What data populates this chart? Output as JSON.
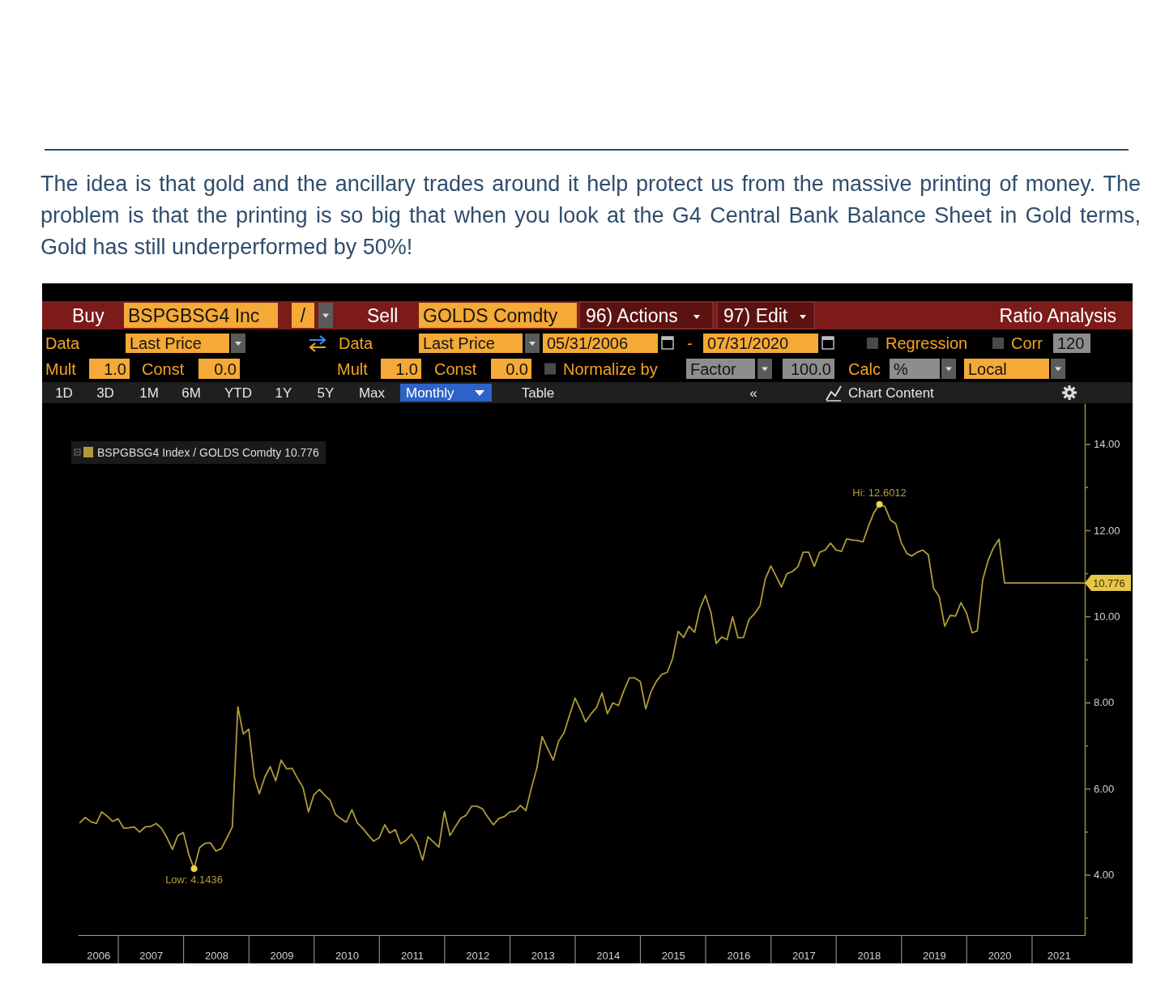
{
  "chart_data": {
    "type": "line",
    "title": "The idea is that gold and the ancillary trades around it help protect us from the massive printing of money. The problem is that the printing is so big that when you look at the G4 Central Bank Balance Sheet in Gold terms, Gold has still underperformed by 50%!",
    "x": [
      "2006-05-31",
      "2006-06-30",
      "2006-07-31",
      "2006-08-31",
      "2006-09-30",
      "2006-10-31",
      "2006-11-30",
      "2006-12-31",
      "2007-01-31",
      "2007-02-28",
      "2007-03-31",
      "2007-04-30",
      "2007-05-31",
      "2007-06-30",
      "2007-07-31",
      "2007-08-31",
      "2007-09-30",
      "2007-10-31",
      "2007-11-30",
      "2007-12-31",
      "2008-01-31",
      "2008-02-29",
      "2008-03-31",
      "2008-04-30",
      "2008-05-31",
      "2008-06-30",
      "2008-07-31",
      "2008-08-31",
      "2008-09-30",
      "2008-10-31",
      "2008-11-30",
      "2008-12-31",
      "2009-01-31",
      "2009-02-28",
      "2009-03-31",
      "2009-04-30",
      "2009-05-31",
      "2009-06-30",
      "2009-07-31",
      "2009-08-31",
      "2009-09-30",
      "2009-10-31",
      "2009-11-30",
      "2009-12-31",
      "2010-01-31",
      "2010-02-28",
      "2010-03-31",
      "2010-04-30",
      "2010-05-31",
      "2010-06-30",
      "2010-07-31",
      "2010-08-31",
      "2010-09-30",
      "2010-10-31",
      "2010-11-30",
      "2010-12-31",
      "2011-01-31",
      "2011-02-28",
      "2011-03-31",
      "2011-04-30",
      "2011-05-31",
      "2011-06-30",
      "2011-07-31",
      "2011-08-31",
      "2011-09-30",
      "2011-10-31",
      "2011-11-30",
      "2011-12-31",
      "2012-01-31",
      "2012-02-29",
      "2012-03-31",
      "2012-04-30",
      "2012-05-31",
      "2012-06-30",
      "2012-07-31",
      "2012-08-31",
      "2012-09-30",
      "2012-10-31",
      "2012-11-30",
      "2012-12-31",
      "2013-01-31",
      "2013-02-28",
      "2013-03-31",
      "2013-04-30",
      "2013-05-31",
      "2013-06-30",
      "2013-07-31",
      "2013-08-31",
      "2013-09-30",
      "2013-10-31",
      "2013-11-30",
      "2013-12-31",
      "2014-01-31",
      "2014-02-28",
      "2014-03-31",
      "2014-04-30",
      "2014-05-31",
      "2014-06-30",
      "2014-07-31",
      "2014-08-31",
      "2014-09-30",
      "2014-10-31",
      "2014-11-30",
      "2014-12-31",
      "2015-01-31",
      "2015-02-28",
      "2015-03-31",
      "2015-04-30",
      "2015-05-31",
      "2015-06-30",
      "2015-07-31",
      "2015-08-31",
      "2015-09-30",
      "2015-10-31",
      "2015-11-30",
      "2015-12-31",
      "2016-01-31",
      "2016-02-29",
      "2016-03-31",
      "2016-04-30",
      "2016-05-31",
      "2016-06-30",
      "2016-07-31",
      "2016-08-31",
      "2016-09-30",
      "2016-10-31",
      "2016-11-30",
      "2016-12-31",
      "2017-01-31",
      "2017-02-28",
      "2017-03-31",
      "2017-04-30",
      "2017-05-31",
      "2017-06-30",
      "2017-07-31",
      "2017-08-31",
      "2017-09-30",
      "2017-10-31",
      "2017-11-30",
      "2017-12-31",
      "2018-01-31",
      "2018-02-28",
      "2018-03-31",
      "2018-04-30",
      "2018-05-31",
      "2018-06-30",
      "2018-07-31",
      "2018-08-31",
      "2018-09-30",
      "2018-10-31",
      "2018-11-30",
      "2018-12-31",
      "2019-01-31",
      "2019-02-28",
      "2019-03-31",
      "2019-04-30",
      "2019-05-31",
      "2019-06-30",
      "2019-07-31",
      "2019-08-31",
      "2019-09-30",
      "2019-10-31",
      "2019-11-30",
      "2019-12-31",
      "2020-01-31",
      "2020-02-29",
      "2020-03-31",
      "2020-04-30",
      "2020-05-31",
      "2020-06-30",
      "2020-07-31",
      "2021-10-23"
    ],
    "series": [
      {
        "name": "BSPGBSG4 Index / GOLDS Comdty 10.776",
        "color": "#b09a38",
        "values": [
          5.21,
          5.33,
          5.23,
          5.19,
          5.46,
          5.36,
          5.24,
          5.3,
          5.08,
          5.09,
          5.11,
          4.99,
          5.11,
          5.12,
          5.19,
          5.08,
          4.86,
          4.59,
          4.91,
          4.98,
          4.46,
          4.1436,
          4.63,
          4.73,
          4.74,
          4.55,
          4.61,
          4.86,
          5.11,
          7.9,
          7.27,
          7.38,
          6.27,
          5.88,
          6.27,
          6.51,
          6.18,
          6.66,
          6.46,
          6.47,
          6.24,
          6.02,
          5.46,
          5.86,
          5.98,
          5.85,
          5.73,
          5.4,
          5.3,
          5.22,
          5.51,
          5.2,
          5.08,
          4.92,
          4.78,
          4.86,
          5.16,
          4.97,
          5.05,
          4.72,
          4.8,
          4.94,
          4.74,
          4.34,
          4.88,
          4.76,
          4.64,
          5.47,
          4.91,
          5.11,
          5.31,
          5.38,
          5.59,
          5.59,
          5.53,
          5.33,
          5.16,
          5.31,
          5.35,
          5.46,
          5.48,
          5.61,
          5.49,
          6.0,
          6.47,
          7.21,
          6.93,
          6.66,
          7.1,
          7.3,
          7.7,
          8.1,
          7.83,
          7.55,
          7.74,
          7.88,
          8.22,
          7.74,
          7.99,
          7.93,
          8.27,
          8.57,
          8.57,
          8.49,
          7.85,
          8.24,
          8.49,
          8.65,
          8.7,
          9.02,
          9.65,
          9.51,
          9.77,
          9.63,
          10.18,
          10.49,
          10.08,
          9.37,
          9.52,
          9.46,
          9.99,
          9.5,
          9.51,
          9.93,
          10.06,
          10.24,
          10.87,
          11.17,
          10.92,
          10.68,
          10.99,
          11.04,
          11.15,
          11.49,
          11.49,
          11.16,
          11.49,
          11.54,
          11.7,
          11.54,
          11.51,
          11.8,
          11.77,
          11.76,
          11.73,
          12.09,
          12.41,
          12.6012,
          12.55,
          12.24,
          12.15,
          11.71,
          11.46,
          11.4,
          11.49,
          11.54,
          11.43,
          10.65,
          10.46,
          9.77,
          10.02,
          10.01,
          10.32,
          10.08,
          9.62,
          9.66,
          10.85,
          11.3,
          11.6,
          11.79,
          10.776,
          10.776
        ]
      }
    ],
    "xlim": [
      "2006-05-19",
      "2021-10-23"
    ],
    "xticks": [
      {
        "value": "2006-09-10",
        "label": "2006"
      },
      {
        "value": "2007-07-02",
        "label": "2007"
      },
      {
        "value": "2008-07-02",
        "label": "2008"
      },
      {
        "value": "2009-07-02",
        "label": "2009"
      },
      {
        "value": "2010-07-02",
        "label": "2010"
      },
      {
        "value": "2011-07-02",
        "label": "2011"
      },
      {
        "value": "2012-07-02",
        "label": "2012"
      },
      {
        "value": "2013-07-02",
        "label": "2013"
      },
      {
        "value": "2014-07-02",
        "label": "2014"
      },
      {
        "value": "2015-07-02",
        "label": "2015"
      },
      {
        "value": "2016-07-02",
        "label": "2016"
      },
      {
        "value": "2017-07-02",
        "label": "2017"
      },
      {
        "value": "2018-07-02",
        "label": "2018"
      },
      {
        "value": "2019-07-02",
        "label": "2019"
      },
      {
        "value": "2020-07-02",
        "label": "2020"
      },
      {
        "value": "2021-05-30",
        "label": "2021"
      }
    ],
    "ylim": [
      2.6,
      14.95
    ],
    "yticks": [
      {
        "value": 3,
        "label": null
      },
      {
        "value": 4,
        "label": "4.00"
      },
      {
        "value": 5,
        "label": null
      },
      {
        "value": 6,
        "label": "6.00"
      },
      {
        "value": 7,
        "label": null
      },
      {
        "value": 8,
        "label": "8.00"
      },
      {
        "value": 9,
        "label": null
      },
      {
        "value": 10,
        "label": "10.00"
      },
      {
        "value": 11,
        "label": null
      },
      {
        "value": 12,
        "label": "12.00"
      },
      {
        "value": 13,
        "label": null
      },
      {
        "value": 14,
        "label": "14.00"
      }
    ],
    "legend": "top left",
    "annotations": [
      "Buy",
      "BSPGBSG4 Inc",
      "/",
      "Sell",
      "GOLDS Comdty",
      "96) Actions",
      "97) Edit",
      "Ratio Analysis",
      "Data",
      "Last Price",
      "Data",
      "Last Price",
      "05/31/2006",
      "-",
      "07/31/2020",
      "Regression",
      "Corr",
      "120",
      "Mult",
      "1.0",
      "Const",
      "0.0",
      "Mult",
      "1.0",
      "Const",
      "0.0",
      "Normalize by",
      "Factor",
      "100.0",
      "Calc",
      "%",
      "Local",
      "1D",
      "3D",
      "1M",
      "6M",
      "YTD",
      "1Y",
      "5Y",
      "Max",
      "Monthly",
      "Table",
      "«",
      "Chart Content",
      {
        "text": "Low: 4.1436",
        "x": "2008-02-29",
        "y": 4.1436
      },
      {
        "text": "Hi: 12.6012",
        "x": "2018-08-31",
        "y": 12.6012
      },
      {
        "text": "10.776",
        "x": "2021-10-23",
        "y": 10.776
      }
    ]
  }
}
